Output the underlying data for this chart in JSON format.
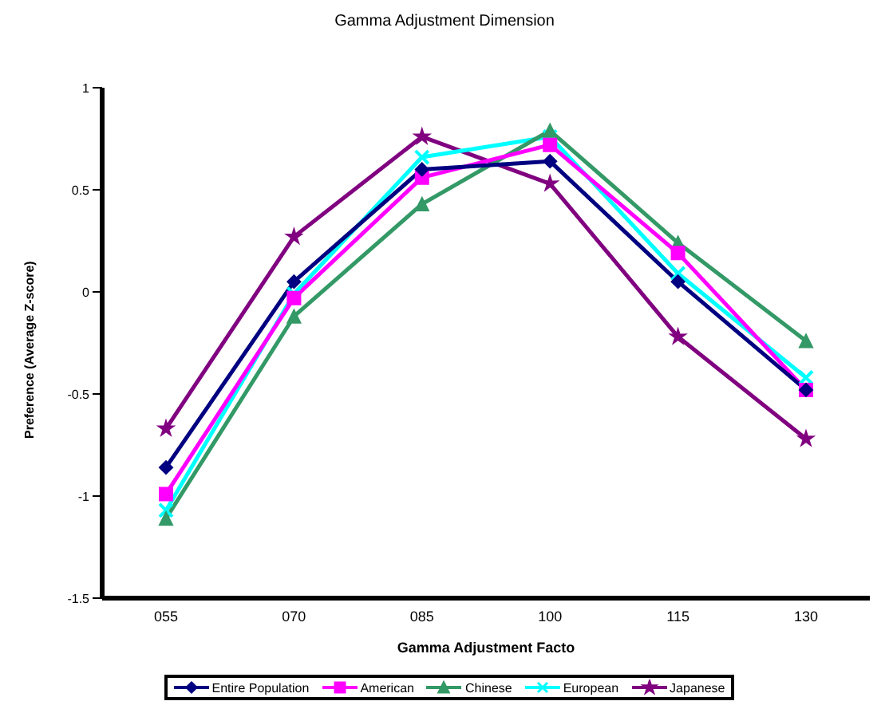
{
  "chart_data": {
    "type": "line",
    "title": "Gamma Adjustment Dimension",
    "xlabel": "Gamma Adjustment Facto",
    "ylabel": "Preference (Average Z-score)",
    "categories": [
      "055",
      "070",
      "085",
      "100",
      "115",
      "130"
    ],
    "ylim": [
      -1.5,
      1
    ],
    "yticks": [
      -1.5,
      -1,
      -0.5,
      0,
      0.5,
      1
    ],
    "grid": false,
    "legend": "bottom",
    "series": [
      {
        "name": "Entire Population",
        "color": "#000080",
        "marker": "diamond",
        "values": [
          -0.86,
          0.05,
          0.6,
          0.64,
          0.05,
          -0.48
        ]
      },
      {
        "name": "American",
        "color": "#ff00ff",
        "marker": "square",
        "values": [
          -0.99,
          -0.03,
          0.56,
          0.72,
          0.19,
          -0.48
        ]
      },
      {
        "name": "Chinese",
        "color": "#339966",
        "marker": "triangle",
        "values": [
          -1.11,
          -0.12,
          0.43,
          0.79,
          0.24,
          -0.24
        ]
      },
      {
        "name": "European",
        "color": "#00ffff",
        "marker": "cross",
        "values": [
          -1.07,
          -0.01,
          0.66,
          0.76,
          0.09,
          -0.42
        ]
      },
      {
        "name": "Japanese",
        "color": "#800080",
        "marker": "star",
        "values": [
          -0.67,
          0.27,
          0.76,
          0.53,
          -0.22,
          -0.72
        ]
      }
    ]
  }
}
